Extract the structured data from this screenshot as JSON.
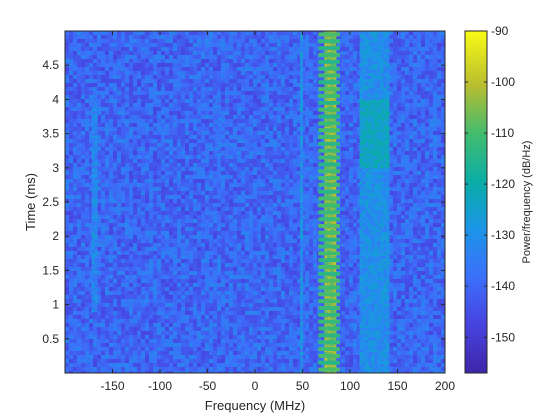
{
  "chart_data": {
    "type": "heatmap",
    "title": "",
    "xlabel": "Frequency (MHz)",
    "ylabel": "Time (ms)",
    "xlim": [
      -200,
      200
    ],
    "ylim": [
      0,
      5
    ],
    "xticks": [
      -150,
      -100,
      -50,
      0,
      50,
      100,
      150,
      200
    ],
    "xtick_labels": [
      "-150",
      "-100",
      "-50",
      "0",
      "50",
      "100",
      "150",
      "200"
    ],
    "yticks": [
      0.5,
      1,
      1.5,
      2,
      2.5,
      3,
      3.5,
      4,
      4.5
    ],
    "ytick_labels": [
      "0.5",
      "1",
      "1.5",
      "2",
      "2.5",
      "3",
      "3.5",
      "4",
      "4.5"
    ],
    "colorbar": {
      "label": "Power/frequency (dB/Hz)",
      "range": [
        -157,
        -90
      ],
      "ticks": [
        -150,
        -140,
        -130,
        -120,
        -110,
        -100,
        -90
      ],
      "tick_labels": [
        "-150",
        "-140",
        "-130",
        "-120",
        "-110",
        "-100",
        "-90"
      ],
      "colormap": "parula"
    },
    "noise_floor_db": -140,
    "signals": [
      {
        "freq_center_mhz": -169,
        "bandwidth_mhz": 6,
        "time_ms": [
          0.9,
          4.0
        ],
        "power_db": -132,
        "pattern": "continuous"
      },
      {
        "freq_center_mhz": -40,
        "bandwidth_mhz": 4,
        "time_ms": [
          3.2,
          4.0
        ],
        "power_db": -136,
        "pattern": "continuous"
      },
      {
        "freq_center_mhz": 49,
        "bandwidth_mhz": 3,
        "time_ms": [
          0,
          5
        ],
        "power_db": -130,
        "pattern": "continuous"
      },
      {
        "freq_center_mhz": 78,
        "bandwidth_mhz": 10,
        "time_ms": [
          0,
          5
        ],
        "power_db": -104,
        "pattern": "hopping carrier with periodic wideband bursts"
      },
      {
        "freq_center_mhz": 125,
        "bandwidth_mhz": 30,
        "time_ms": [
          0,
          5
        ],
        "power_db": -130,
        "pattern": "wideband, stronger 3.0–4.0 ms"
      }
    ],
    "grid": false,
    "legend": "none"
  }
}
